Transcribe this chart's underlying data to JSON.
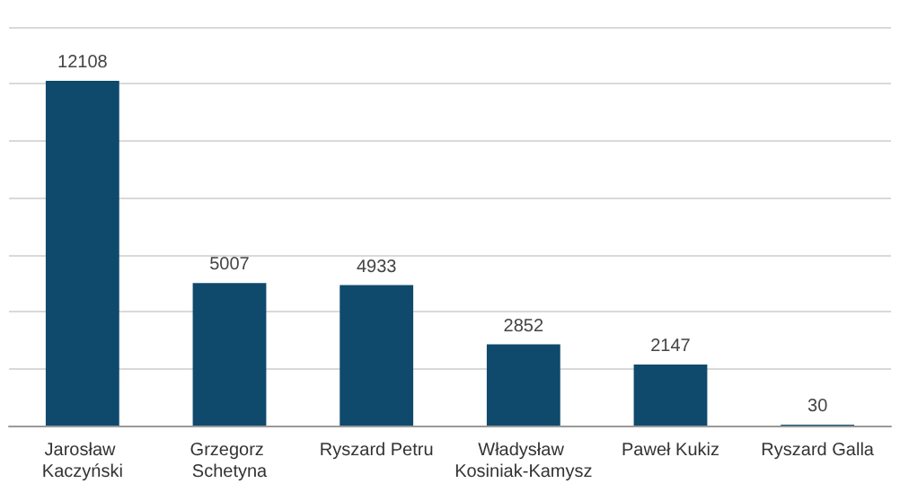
{
  "chart_data": {
    "type": "bar",
    "categories": [
      "Jarosław Kaczyński",
      "Grzegorz Schetyna",
      "Ryszard Petru",
      "Władysław Kosiniak-Kamysz",
      "Paweł Kukiz",
      "Ryszard Galla"
    ],
    "values": [
      12108,
      5007,
      4933,
      2852,
      2147,
      30
    ],
    "color": "#0f4a6c",
    "ylim": [
      0,
      14000
    ],
    "yticks": [
      {
        "value": 0,
        "label": null
      },
      {
        "value": 2000,
        "label": null
      },
      {
        "value": 4000,
        "label": null
      },
      {
        "value": 6000,
        "label": null
      },
      {
        "value": 8000,
        "label": null
      },
      {
        "value": 10000,
        "label": null
      },
      {
        "value": 12000,
        "label": null
      },
      {
        "value": 14000,
        "label": null
      }
    ],
    "tick_labels": "x",
    "grid": "y",
    "data_labels": true
  }
}
